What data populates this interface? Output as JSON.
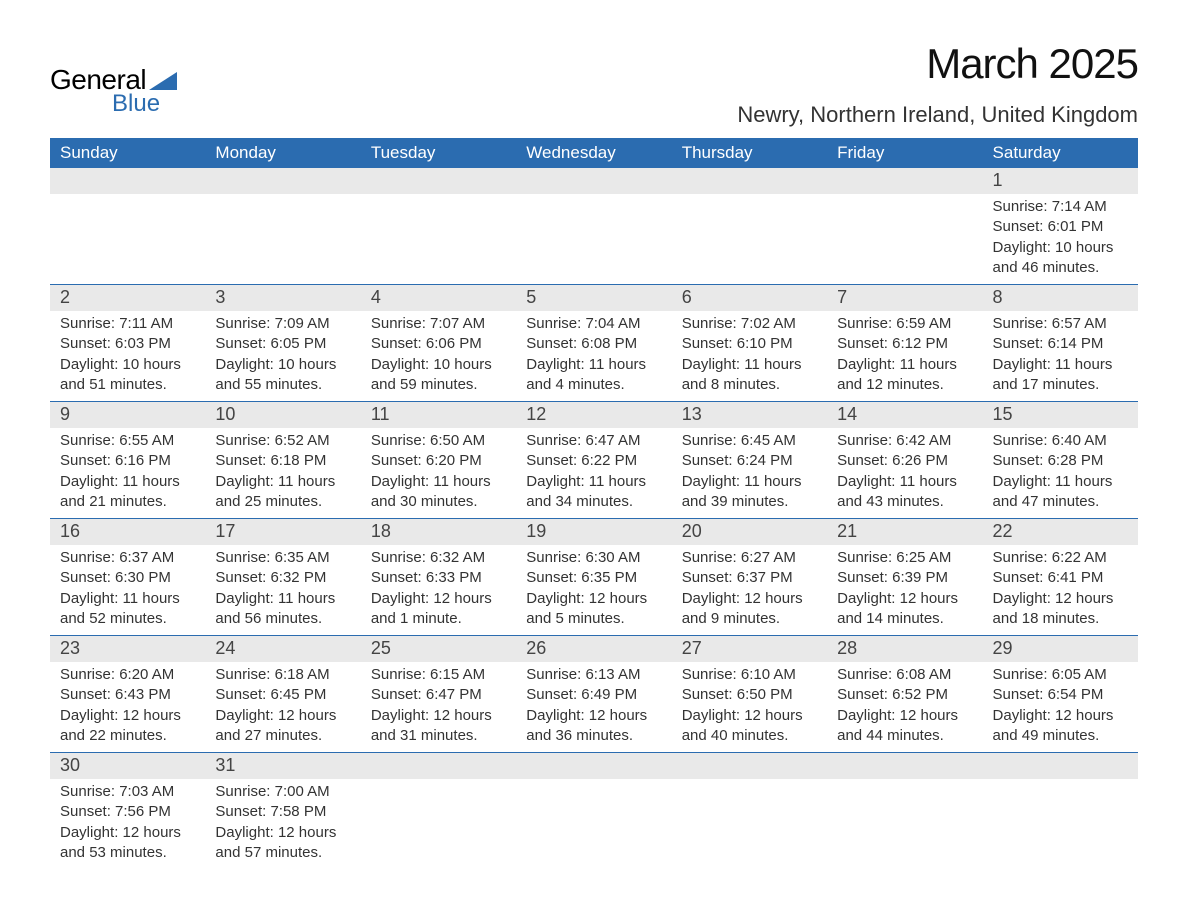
{
  "logo": {
    "text1": "General",
    "text2": "Blue",
    "tri_color": "#2b6cb0"
  },
  "title": "March 2025",
  "location": "Newry, Northern Ireland, United Kingdom",
  "colors": {
    "header_bg": "#2b6cb0",
    "header_text": "#ffffff",
    "daynum_bg": "#e9e9e9",
    "row_border": "#2b6cb0",
    "text": "#333333"
  },
  "weekdays": [
    "Sunday",
    "Monday",
    "Tuesday",
    "Wednesday",
    "Thursday",
    "Friday",
    "Saturday"
  ],
  "weeks": [
    [
      {
        "n": "",
        "sr": "",
        "ss": "",
        "dl": ""
      },
      {
        "n": "",
        "sr": "",
        "ss": "",
        "dl": ""
      },
      {
        "n": "",
        "sr": "",
        "ss": "",
        "dl": ""
      },
      {
        "n": "",
        "sr": "",
        "ss": "",
        "dl": ""
      },
      {
        "n": "",
        "sr": "",
        "ss": "",
        "dl": ""
      },
      {
        "n": "",
        "sr": "",
        "ss": "",
        "dl": ""
      },
      {
        "n": "1",
        "sr": "Sunrise: 7:14 AM",
        "ss": "Sunset: 6:01 PM",
        "dl": "Daylight: 10 hours and 46 minutes."
      }
    ],
    [
      {
        "n": "2",
        "sr": "Sunrise: 7:11 AM",
        "ss": "Sunset: 6:03 PM",
        "dl": "Daylight: 10 hours and 51 minutes."
      },
      {
        "n": "3",
        "sr": "Sunrise: 7:09 AM",
        "ss": "Sunset: 6:05 PM",
        "dl": "Daylight: 10 hours and 55 minutes."
      },
      {
        "n": "4",
        "sr": "Sunrise: 7:07 AM",
        "ss": "Sunset: 6:06 PM",
        "dl": "Daylight: 10 hours and 59 minutes."
      },
      {
        "n": "5",
        "sr": "Sunrise: 7:04 AM",
        "ss": "Sunset: 6:08 PM",
        "dl": "Daylight: 11 hours and 4 minutes."
      },
      {
        "n": "6",
        "sr": "Sunrise: 7:02 AM",
        "ss": "Sunset: 6:10 PM",
        "dl": "Daylight: 11 hours and 8 minutes."
      },
      {
        "n": "7",
        "sr": "Sunrise: 6:59 AM",
        "ss": "Sunset: 6:12 PM",
        "dl": "Daylight: 11 hours and 12 minutes."
      },
      {
        "n": "8",
        "sr": "Sunrise: 6:57 AM",
        "ss": "Sunset: 6:14 PM",
        "dl": "Daylight: 11 hours and 17 minutes."
      }
    ],
    [
      {
        "n": "9",
        "sr": "Sunrise: 6:55 AM",
        "ss": "Sunset: 6:16 PM",
        "dl": "Daylight: 11 hours and 21 minutes."
      },
      {
        "n": "10",
        "sr": "Sunrise: 6:52 AM",
        "ss": "Sunset: 6:18 PM",
        "dl": "Daylight: 11 hours and 25 minutes."
      },
      {
        "n": "11",
        "sr": "Sunrise: 6:50 AM",
        "ss": "Sunset: 6:20 PM",
        "dl": "Daylight: 11 hours and 30 minutes."
      },
      {
        "n": "12",
        "sr": "Sunrise: 6:47 AM",
        "ss": "Sunset: 6:22 PM",
        "dl": "Daylight: 11 hours and 34 minutes."
      },
      {
        "n": "13",
        "sr": "Sunrise: 6:45 AM",
        "ss": "Sunset: 6:24 PM",
        "dl": "Daylight: 11 hours and 39 minutes."
      },
      {
        "n": "14",
        "sr": "Sunrise: 6:42 AM",
        "ss": "Sunset: 6:26 PM",
        "dl": "Daylight: 11 hours and 43 minutes."
      },
      {
        "n": "15",
        "sr": "Sunrise: 6:40 AM",
        "ss": "Sunset: 6:28 PM",
        "dl": "Daylight: 11 hours and 47 minutes."
      }
    ],
    [
      {
        "n": "16",
        "sr": "Sunrise: 6:37 AM",
        "ss": "Sunset: 6:30 PM",
        "dl": "Daylight: 11 hours and 52 minutes."
      },
      {
        "n": "17",
        "sr": "Sunrise: 6:35 AM",
        "ss": "Sunset: 6:32 PM",
        "dl": "Daylight: 11 hours and 56 minutes."
      },
      {
        "n": "18",
        "sr": "Sunrise: 6:32 AM",
        "ss": "Sunset: 6:33 PM",
        "dl": "Daylight: 12 hours and 1 minute."
      },
      {
        "n": "19",
        "sr": "Sunrise: 6:30 AM",
        "ss": "Sunset: 6:35 PM",
        "dl": "Daylight: 12 hours and 5 minutes."
      },
      {
        "n": "20",
        "sr": "Sunrise: 6:27 AM",
        "ss": "Sunset: 6:37 PM",
        "dl": "Daylight: 12 hours and 9 minutes."
      },
      {
        "n": "21",
        "sr": "Sunrise: 6:25 AM",
        "ss": "Sunset: 6:39 PM",
        "dl": "Daylight: 12 hours and 14 minutes."
      },
      {
        "n": "22",
        "sr": "Sunrise: 6:22 AM",
        "ss": "Sunset: 6:41 PM",
        "dl": "Daylight: 12 hours and 18 minutes."
      }
    ],
    [
      {
        "n": "23",
        "sr": "Sunrise: 6:20 AM",
        "ss": "Sunset: 6:43 PM",
        "dl": "Daylight: 12 hours and 22 minutes."
      },
      {
        "n": "24",
        "sr": "Sunrise: 6:18 AM",
        "ss": "Sunset: 6:45 PM",
        "dl": "Daylight: 12 hours and 27 minutes."
      },
      {
        "n": "25",
        "sr": "Sunrise: 6:15 AM",
        "ss": "Sunset: 6:47 PM",
        "dl": "Daylight: 12 hours and 31 minutes."
      },
      {
        "n": "26",
        "sr": "Sunrise: 6:13 AM",
        "ss": "Sunset: 6:49 PM",
        "dl": "Daylight: 12 hours and 36 minutes."
      },
      {
        "n": "27",
        "sr": "Sunrise: 6:10 AM",
        "ss": "Sunset: 6:50 PM",
        "dl": "Daylight: 12 hours and 40 minutes."
      },
      {
        "n": "28",
        "sr": "Sunrise: 6:08 AM",
        "ss": "Sunset: 6:52 PM",
        "dl": "Daylight: 12 hours and 44 minutes."
      },
      {
        "n": "29",
        "sr": "Sunrise: 6:05 AM",
        "ss": "Sunset: 6:54 PM",
        "dl": "Daylight: 12 hours and 49 minutes."
      }
    ],
    [
      {
        "n": "30",
        "sr": "Sunrise: 7:03 AM",
        "ss": "Sunset: 7:56 PM",
        "dl": "Daylight: 12 hours and 53 minutes."
      },
      {
        "n": "31",
        "sr": "Sunrise: 7:00 AM",
        "ss": "Sunset: 7:58 PM",
        "dl": "Daylight: 12 hours and 57 minutes."
      },
      {
        "n": "",
        "sr": "",
        "ss": "",
        "dl": ""
      },
      {
        "n": "",
        "sr": "",
        "ss": "",
        "dl": ""
      },
      {
        "n": "",
        "sr": "",
        "ss": "",
        "dl": ""
      },
      {
        "n": "",
        "sr": "",
        "ss": "",
        "dl": ""
      },
      {
        "n": "",
        "sr": "",
        "ss": "",
        "dl": ""
      }
    ]
  ]
}
